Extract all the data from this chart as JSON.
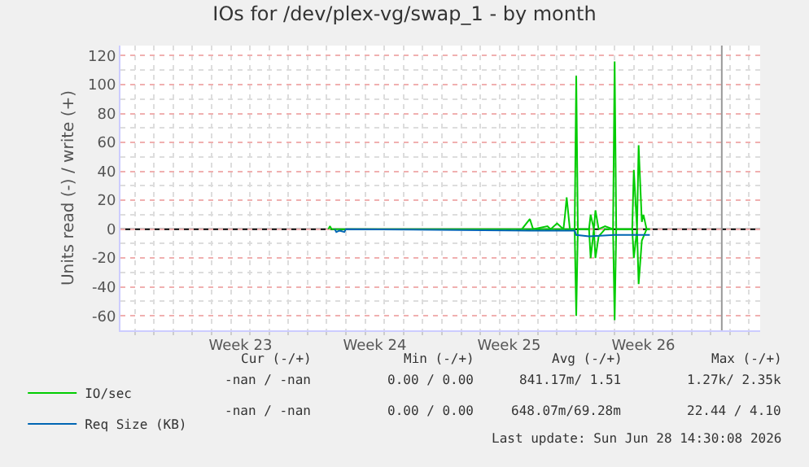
{
  "chart_data": {
    "type": "line",
    "title": "IOs for /dev/plex-vg/swap_1 - by month",
    "ylabel": "Units read (-) / write (+)",
    "xlim": [
      "2026-05-29T06:00",
      "2026-07-01T14:00"
    ],
    "xticks": [
      {
        "value": "2026-06-04T12:00",
        "label": "Week 23"
      },
      {
        "value": "2026-06-11T12:00",
        "label": "Week 24"
      },
      {
        "value": "2026-06-18T12:00",
        "label": "Week 25"
      },
      {
        "value": "2026-06-25T12:00",
        "label": "Week 26"
      }
    ],
    "ylim": [
      -70,
      127
    ],
    "yticks": [
      -60,
      -40,
      -20,
      0,
      20,
      40,
      60,
      80,
      100,
      120
    ],
    "grid": true,
    "legend": "bottom left",
    "series": [
      {
        "name": "IO/sec",
        "color": "#00cc00",
        "x": [
          "2026-06-09T02:00",
          "2026-06-09T04:00",
          "2026-06-09T06:00",
          "2026-06-19T04:00",
          "2026-06-19T14:00",
          "2026-06-19T18:00",
          "2026-06-20T12:00",
          "2026-06-20T16:00",
          "2026-06-21T00:00",
          "2026-06-21T08:00",
          "2026-06-21T10:00",
          "2026-06-21T12:00",
          "2026-06-21T16:00",
          "2026-06-21T22:00",
          "2026-06-22T00:00",
          "2026-06-22T02:00",
          "2026-06-22T16:00",
          "2026-06-22T18:00",
          "2026-06-22T22:00",
          "2026-06-23T00:00",
          "2026-06-23T04:00",
          "2026-06-23T12:00",
          "2026-06-23T22:00",
          "2026-06-24T00:00",
          "2026-06-24T02:00",
          "2026-06-24T22:00",
          "2026-06-25T00:00",
          "2026-06-25T04:00",
          "2026-06-25T06:00",
          "2026-06-25T10:00",
          "2026-06-25T12:00",
          "2026-06-25T16:00",
          "2026-06-25T20:00"
        ],
        "values": [
          0,
          2,
          0,
          0,
          7,
          0,
          2,
          0,
          4,
          0,
          10,
          22,
          0,
          0,
          106,
          0,
          0,
          10,
          0,
          13,
          0,
          2,
          0,
          116,
          0,
          0,
          41,
          0,
          58,
          5,
          10,
          0,
          0
        ]
      },
      {
        "color": "#00cc00",
        "x": [
          "2026-06-19T04:00",
          "2026-06-21T22:00",
          "2026-06-22T00:00",
          "2026-06-22T02:00",
          "2026-06-22T16:00",
          "2026-06-22T18:00",
          "2026-06-22T22:00",
          "2026-06-23T00:00",
          "2026-06-23T04:00",
          "2026-06-23T12:00",
          "2026-06-23T22:00",
          "2026-06-24T00:00",
          "2026-06-24T02:00",
          "2026-06-24T22:00",
          "2026-06-25T00:00",
          "2026-06-25T04:00",
          "2026-06-25T06:00",
          "2026-06-25T10:00",
          "2026-06-25T16:00",
          "2026-06-25T20:00"
        ],
        "values": [
          0,
          0,
          -60,
          0,
          0,
          -20,
          0,
          -20,
          -5,
          0,
          0,
          -63,
          0,
          0,
          -20,
          0,
          -38,
          -8,
          0,
          0
        ]
      },
      {
        "name": "Req Size (KB)",
        "color": "#0066b3",
        "x": [
          "2026-06-09T10:00",
          "2026-06-09T12:00",
          "2026-06-09T16:00",
          "2026-06-09T22:00",
          "2026-06-10T00:00",
          "2026-06-19T14:00",
          "2026-06-21T22:00",
          "2026-06-22T00:00",
          "2026-06-22T16:00",
          "2026-06-24T00:00",
          "2026-06-25T20:00"
        ],
        "values": [
          0,
          -2,
          -1,
          -2,
          0,
          -1,
          -1,
          -4,
          -5,
          -4,
          -4
        ]
      }
    ],
    "ref_lines": [
      {
        "axis": "x",
        "value": "2026-06-29T14:00",
        "color": "#999999"
      }
    ],
    "annotations": [
      "Cur (-/+)",
      "Min (-/+)",
      "Avg (-/+)",
      "Max (-/+)",
      "-nan / -nan",
      "0.00 / 0.00",
      "841.17m/ 1.51",
      "1.27k/ 2.35k",
      "-nan / -nan",
      "0.00 / 0.00",
      "648.07m/69.28m",
      "22.44 / 4.10",
      "Last update: Sun Jun 28 14:30:08 2026"
    ]
  }
}
